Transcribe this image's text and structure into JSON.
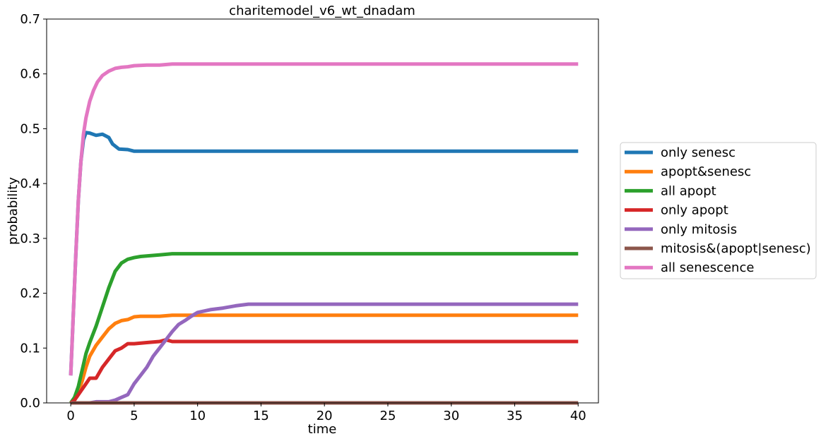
{
  "chart_data": {
    "type": "line",
    "title": "charitemodel_v6_wt_dnadam",
    "xlabel": "time",
    "ylabel": "probability",
    "xlim": [
      -1.9,
      41.6
    ],
    "ylim": [
      0,
      0.7
    ],
    "xticks": [
      0,
      5,
      10,
      15,
      20,
      25,
      30,
      35,
      40
    ],
    "yticks": [
      0.0,
      0.1,
      0.2,
      0.3,
      0.4,
      0.5,
      0.6,
      0.7
    ],
    "xtick_labels": [
      "0",
      "5",
      "10",
      "15",
      "20",
      "25",
      "30",
      "35",
      "40"
    ],
    "ytick_labels": [
      "0.0",
      "0.1",
      "0.2",
      "0.3",
      "0.4",
      "0.5",
      "0.6",
      "0.7"
    ],
    "grid": false,
    "legend_position": "center-right outside",
    "series": [
      {
        "name": "only senesc",
        "color": "#1f77b4",
        "x": [
          0,
          0.2,
          0.4,
          0.6,
          0.8,
          1.0,
          1.2,
          1.5,
          2.0,
          2.5,
          3.0,
          3.3,
          3.8,
          4.5,
          5.0,
          6,
          8,
          10,
          15,
          20,
          30,
          40
        ],
        "y": [
          0.05,
          0.16,
          0.27,
          0.37,
          0.44,
          0.48,
          0.493,
          0.492,
          0.488,
          0.49,
          0.484,
          0.472,
          0.463,
          0.462,
          0.459,
          0.459,
          0.459,
          0.459,
          0.459,
          0.459,
          0.459,
          0.459
        ]
      },
      {
        "name": "apopt&senesc",
        "color": "#ff7f0e",
        "x": [
          0,
          0.3,
          0.6,
          0.9,
          1.2,
          1.5,
          2.0,
          2.5,
          3.0,
          3.5,
          4.0,
          4.5,
          5.0,
          5.5,
          7,
          8,
          10,
          20,
          30,
          40
        ],
        "y": [
          0,
          0.005,
          0.02,
          0.04,
          0.065,
          0.085,
          0.105,
          0.12,
          0.135,
          0.145,
          0.15,
          0.152,
          0.157,
          0.158,
          0.158,
          0.16,
          0.16,
          0.16,
          0.16,
          0.16
        ]
      },
      {
        "name": "all apopt",
        "color": "#2ca02c",
        "x": [
          0,
          0.3,
          0.6,
          0.9,
          1.2,
          1.5,
          2.0,
          2.5,
          3.0,
          3.5,
          4.0,
          4.5,
          5.0,
          5.5,
          6.0,
          7.0,
          8.0,
          10,
          20,
          30,
          40
        ],
        "y": [
          0,
          0.01,
          0.03,
          0.06,
          0.09,
          0.11,
          0.14,
          0.175,
          0.21,
          0.24,
          0.255,
          0.262,
          0.265,
          0.267,
          0.268,
          0.27,
          0.272,
          0.272,
          0.272,
          0.272,
          0.272
        ]
      },
      {
        "name": "only apopt",
        "color": "#d62728",
        "x": [
          0,
          0.3,
          0.6,
          0.9,
          1.2,
          1.5,
          2.0,
          2.5,
          3.0,
          3.5,
          4.0,
          4.5,
          5.0,
          6.0,
          7.0,
          7.5,
          8.0,
          10,
          20,
          30,
          40
        ],
        "y": [
          0,
          0.005,
          0.015,
          0.025,
          0.035,
          0.045,
          0.045,
          0.065,
          0.08,
          0.095,
          0.1,
          0.108,
          0.108,
          0.11,
          0.112,
          0.115,
          0.112,
          0.112,
          0.112,
          0.112,
          0.112
        ]
      },
      {
        "name": "only mitosis",
        "color": "#9467bd",
        "x": [
          0,
          1.5,
          2.0,
          3.0,
          3.5,
          4.0,
          4.5,
          5.0,
          5.5,
          6.0,
          6.5,
          7.0,
          7.5,
          8.0,
          8.5,
          9.0,
          9.5,
          10.0,
          11,
          12,
          13,
          14,
          20,
          30,
          40
        ],
        "y": [
          0,
          0,
          0.002,
          0.002,
          0.005,
          0.01,
          0.015,
          0.035,
          0.05,
          0.065,
          0.085,
          0.1,
          0.115,
          0.13,
          0.143,
          0.15,
          0.158,
          0.165,
          0.17,
          0.173,
          0.177,
          0.18,
          0.18,
          0.18,
          0.18
        ]
      },
      {
        "name": "mitosis&(apopt|senesc)",
        "color": "#8c564b",
        "x": [
          0,
          10,
          20,
          30,
          40
        ],
        "y": [
          0,
          0,
          0,
          0,
          0
        ]
      },
      {
        "name": "all senescence",
        "color": "#e377c2",
        "x": [
          0,
          0.2,
          0.4,
          0.6,
          0.8,
          1.0,
          1.2,
          1.5,
          1.8,
          2.1,
          2.5,
          3.0,
          3.5,
          4.0,
          4.5,
          5.0,
          6.0,
          7.0,
          8.0,
          10,
          20,
          30,
          40
        ],
        "y": [
          0.05,
          0.16,
          0.27,
          0.37,
          0.44,
          0.49,
          0.52,
          0.55,
          0.57,
          0.585,
          0.597,
          0.605,
          0.61,
          0.612,
          0.613,
          0.615,
          0.616,
          0.616,
          0.618,
          0.618,
          0.618,
          0.618,
          0.618
        ]
      }
    ]
  }
}
